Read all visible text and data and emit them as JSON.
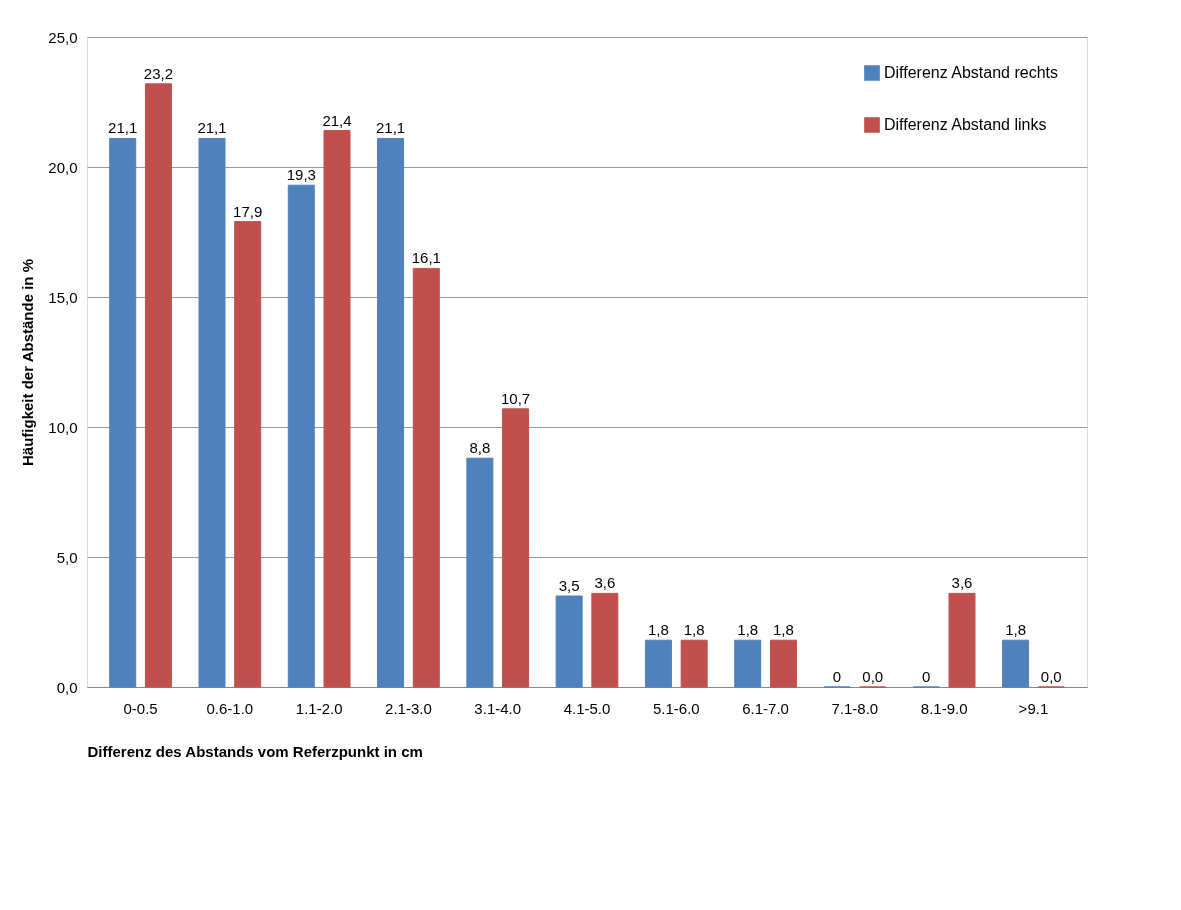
{
  "chart_data": {
    "type": "bar",
    "xlabel": "Differenz des Abstands vom Referzpunkt in cm",
    "ylabel": "Häufigkeit der Abstände in %",
    "categories": [
      "0-0.5",
      "0.6-1.0",
      "1.1-2.0",
      "2.1-3.0",
      "3.1-4.0",
      "4.1-5.0",
      "5.1-6.0",
      "6.1-7.0",
      "7.1-8.0",
      "8.1-9.0",
      ">9.1"
    ],
    "series": [
      {
        "name": "Differenz Abstand rechts",
        "color": "#4f81bd",
        "values": [
          21.1,
          21.1,
          19.3,
          21.1,
          8.8,
          3.5,
          1.8,
          1.8,
          0,
          0,
          1.8
        ],
        "value_labels": [
          "21,1",
          "21,1",
          "19,3",
          "21,1",
          "8,8",
          "3,5",
          "1,8",
          "1,8",
          "0",
          "0",
          "1,8"
        ]
      },
      {
        "name": "Differenz Abstand links",
        "color": "#c0504d",
        "values": [
          23.2,
          17.9,
          21.4,
          16.1,
          10.7,
          3.6,
          1.8,
          1.8,
          0.0,
          3.6,
          0.0
        ],
        "value_labels": [
          "23,2",
          "17,9",
          "21,4",
          "16,1",
          "10,7",
          "3,6",
          "1,8",
          "1,8",
          "0,0",
          "3,6",
          "0,0"
        ]
      }
    ],
    "ylim": [
      0,
      25
    ],
    "yticks": [
      {
        "value": 0,
        "label": "0,0"
      },
      {
        "value": 5,
        "label": "5,0"
      },
      {
        "value": 10,
        "label": "10,0"
      },
      {
        "value": 15,
        "label": "15,0"
      },
      {
        "value": 20,
        "label": "20,0"
      },
      {
        "value": 25,
        "label": "25,0"
      }
    ],
    "grid": "y",
    "legend": "top right"
  }
}
